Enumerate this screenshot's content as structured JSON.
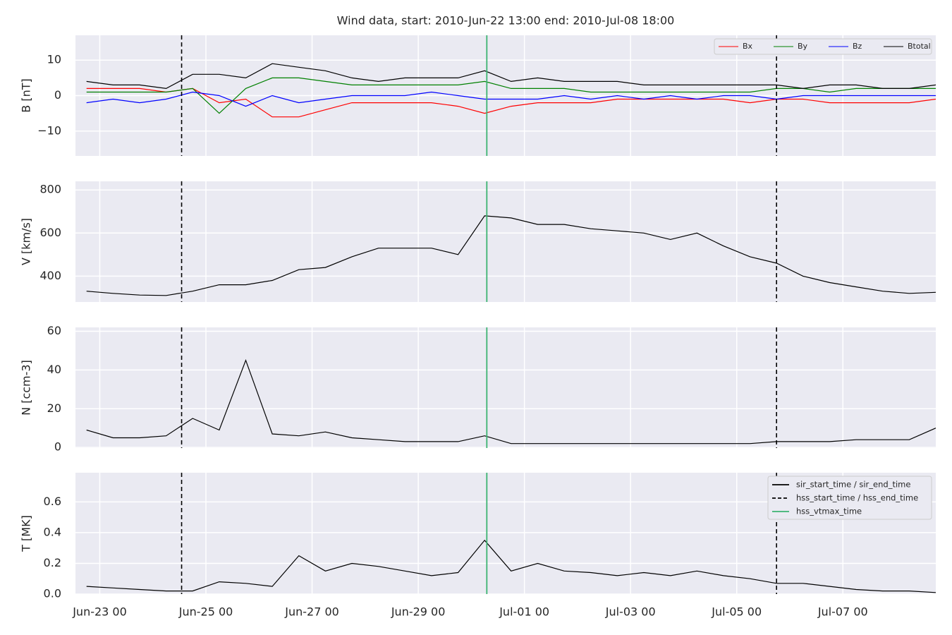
{
  "title": "Wind data, start: 2010-Jun-22 13:00  end: 2010-Jul-08 18:00",
  "time_axis": {
    "xlim": [
      "2010-06-22 13:00",
      "2010-07-08 18:00"
    ],
    "xticks": [
      {
        "value": "2010-06-23 00:00",
        "label": "Jun-23 00"
      },
      {
        "value": "2010-06-25 00:00",
        "label": "Jun-25 00"
      },
      {
        "value": "2010-06-27 00:00",
        "label": "Jun-27 00"
      },
      {
        "value": "2010-06-29 00:00",
        "label": "Jun-29 00"
      },
      {
        "value": "2010-07-01 00:00",
        "label": "Jul-01 00"
      },
      {
        "value": "2010-07-03 00:00",
        "label": "Jul-03 00"
      },
      {
        "value": "2010-07-05 00:00",
        "label": "Jul-05 00"
      },
      {
        "value": "2010-07-07 00:00",
        "label": "Jul-07 00"
      }
    ],
    "x": [
      "2010-06-22 18:00",
      "2010-06-23 06:00",
      "2010-06-23 18:00",
      "2010-06-24 06:00",
      "2010-06-24 18:00",
      "2010-06-25 06:00",
      "2010-06-25 18:00",
      "2010-06-26 06:00",
      "2010-06-26 18:00",
      "2010-06-27 06:00",
      "2010-06-27 18:00",
      "2010-06-28 06:00",
      "2010-06-28 18:00",
      "2010-06-29 06:00",
      "2010-06-29 18:00",
      "2010-06-30 06:00",
      "2010-06-30 18:00",
      "2010-07-01 06:00",
      "2010-07-01 18:00",
      "2010-07-02 06:00",
      "2010-07-02 18:00",
      "2010-07-03 06:00",
      "2010-07-03 18:00",
      "2010-07-04 06:00",
      "2010-07-04 18:00",
      "2010-07-05 06:00",
      "2010-07-05 18:00",
      "2010-07-06 06:00",
      "2010-07-06 18:00",
      "2010-07-07 06:00",
      "2010-07-07 18:00",
      "2010-07-08 06:00",
      "2010-07-08 18:00"
    ]
  },
  "markers": [
    {
      "name": "sir_start_time / sir_end_time",
      "x": [],
      "color": "#000000",
      "style": "solid"
    },
    {
      "name": "hss_start_time / hss_end_time",
      "x": [
        "2010-06-24 13:00",
        "2010-07-05 18:00"
      ],
      "color": "#000000",
      "style": "dashed"
    },
    {
      "name": "hss_vtmax_time",
      "x": [
        "2010-06-30 07:00"
      ],
      "color": "#3cb371",
      "style": "solid"
    }
  ],
  "chart_data": [
    {
      "type": "line",
      "ylabel": "B [nT]",
      "ylim": [
        -17,
        17
      ],
      "yticks": [
        {
          "value": -10,
          "label": "−10"
        },
        0,
        10
      ],
      "grid": true,
      "legend": "upper right",
      "series": [
        {
          "name": "Bx",
          "color": "#ff0000",
          "values": [
            2,
            2,
            2,
            1,
            2,
            -2,
            -1,
            -6,
            -6,
            -4,
            -2,
            -2,
            -2,
            -2,
            -3,
            -5,
            -3,
            -2,
            -2,
            -2,
            -1,
            -1,
            -1,
            -1,
            -1,
            -2,
            -1,
            -1,
            -2,
            -2,
            -2,
            -2,
            -1
          ]
        },
        {
          "name": "By",
          "color": "#008000",
          "values": [
            1,
            1,
            1,
            1,
            2,
            -5,
            2,
            5,
            5,
            4,
            3,
            3,
            3,
            3,
            3,
            4,
            2,
            2,
            2,
            1,
            1,
            1,
            1,
            1,
            1,
            1,
            2,
            2,
            1,
            2,
            2,
            2,
            2
          ]
        },
        {
          "name": "Bz",
          "color": "#0000ff",
          "values": [
            -2,
            -1,
            -2,
            -1,
            1,
            0,
            -3,
            0,
            -2,
            -1,
            0,
            0,
            0,
            1,
            0,
            -1,
            -1,
            -1,
            0,
            -1,
            0,
            -1,
            0,
            -1,
            0,
            0,
            -1,
            0,
            0,
            0,
            0,
            0,
            0
          ]
        },
        {
          "name": "Btotal",
          "color": "#000000",
          "values": [
            4,
            3,
            3,
            2,
            6,
            6,
            5,
            9,
            8,
            7,
            5,
            4,
            5,
            5,
            5,
            7,
            4,
            5,
            4,
            4,
            4,
            3,
            3,
            3,
            3,
            3,
            3,
            2,
            3,
            3,
            2,
            2,
            3
          ]
        }
      ]
    },
    {
      "type": "line",
      "ylabel": "V [km/s]",
      "ylim": [
        280,
        840
      ],
      "yticks": [
        400,
        600,
        800
      ],
      "grid": true,
      "series": [
        {
          "color": "#000000",
          "values": [
            330,
            320,
            312,
            310,
            330,
            360,
            360,
            380,
            430,
            440,
            490,
            530,
            530,
            530,
            500,
            680,
            670,
            640,
            640,
            620,
            610,
            600,
            570,
            600,
            540,
            490,
            460,
            400,
            370,
            350,
            330,
            320,
            325
          ]
        }
      ]
    },
    {
      "type": "line",
      "ylabel": "N [ccm-3]",
      "ylim": [
        -0.3,
        62
      ],
      "yticks": [
        0,
        20,
        40,
        60
      ],
      "grid": true,
      "series": [
        {
          "color": "#000000",
          "values": [
            9,
            5,
            5,
            6,
            15,
            9,
            45,
            7,
            6,
            8,
            5,
            4,
            3,
            3,
            3,
            6,
            2,
            2,
            2,
            2,
            2,
            2,
            2,
            2,
            2,
            2,
            3,
            3,
            3,
            4,
            4,
            4,
            10
          ]
        }
      ]
    },
    {
      "type": "line",
      "ylabel": "T [MK]",
      "ylim": [
        0,
        0.79
      ],
      "yticks": [
        {
          "value": 0,
          "label": "0.0"
        },
        0.2,
        0.4,
        0.6
      ],
      "grid": true,
      "legend": "upper right",
      "series": [
        {
          "color": "#000000",
          "values": [
            0.05,
            0.04,
            0.03,
            0.02,
            0.02,
            0.08,
            0.07,
            0.05,
            0.25,
            0.15,
            0.2,
            0.18,
            0.15,
            0.12,
            0.14,
            0.35,
            0.15,
            0.2,
            0.15,
            0.14,
            0.12,
            0.14,
            0.12,
            0.15,
            0.12,
            0.1,
            0.07,
            0.07,
            0.05,
            0.03,
            0.02,
            0.02,
            0.01
          ]
        }
      ]
    }
  ]
}
